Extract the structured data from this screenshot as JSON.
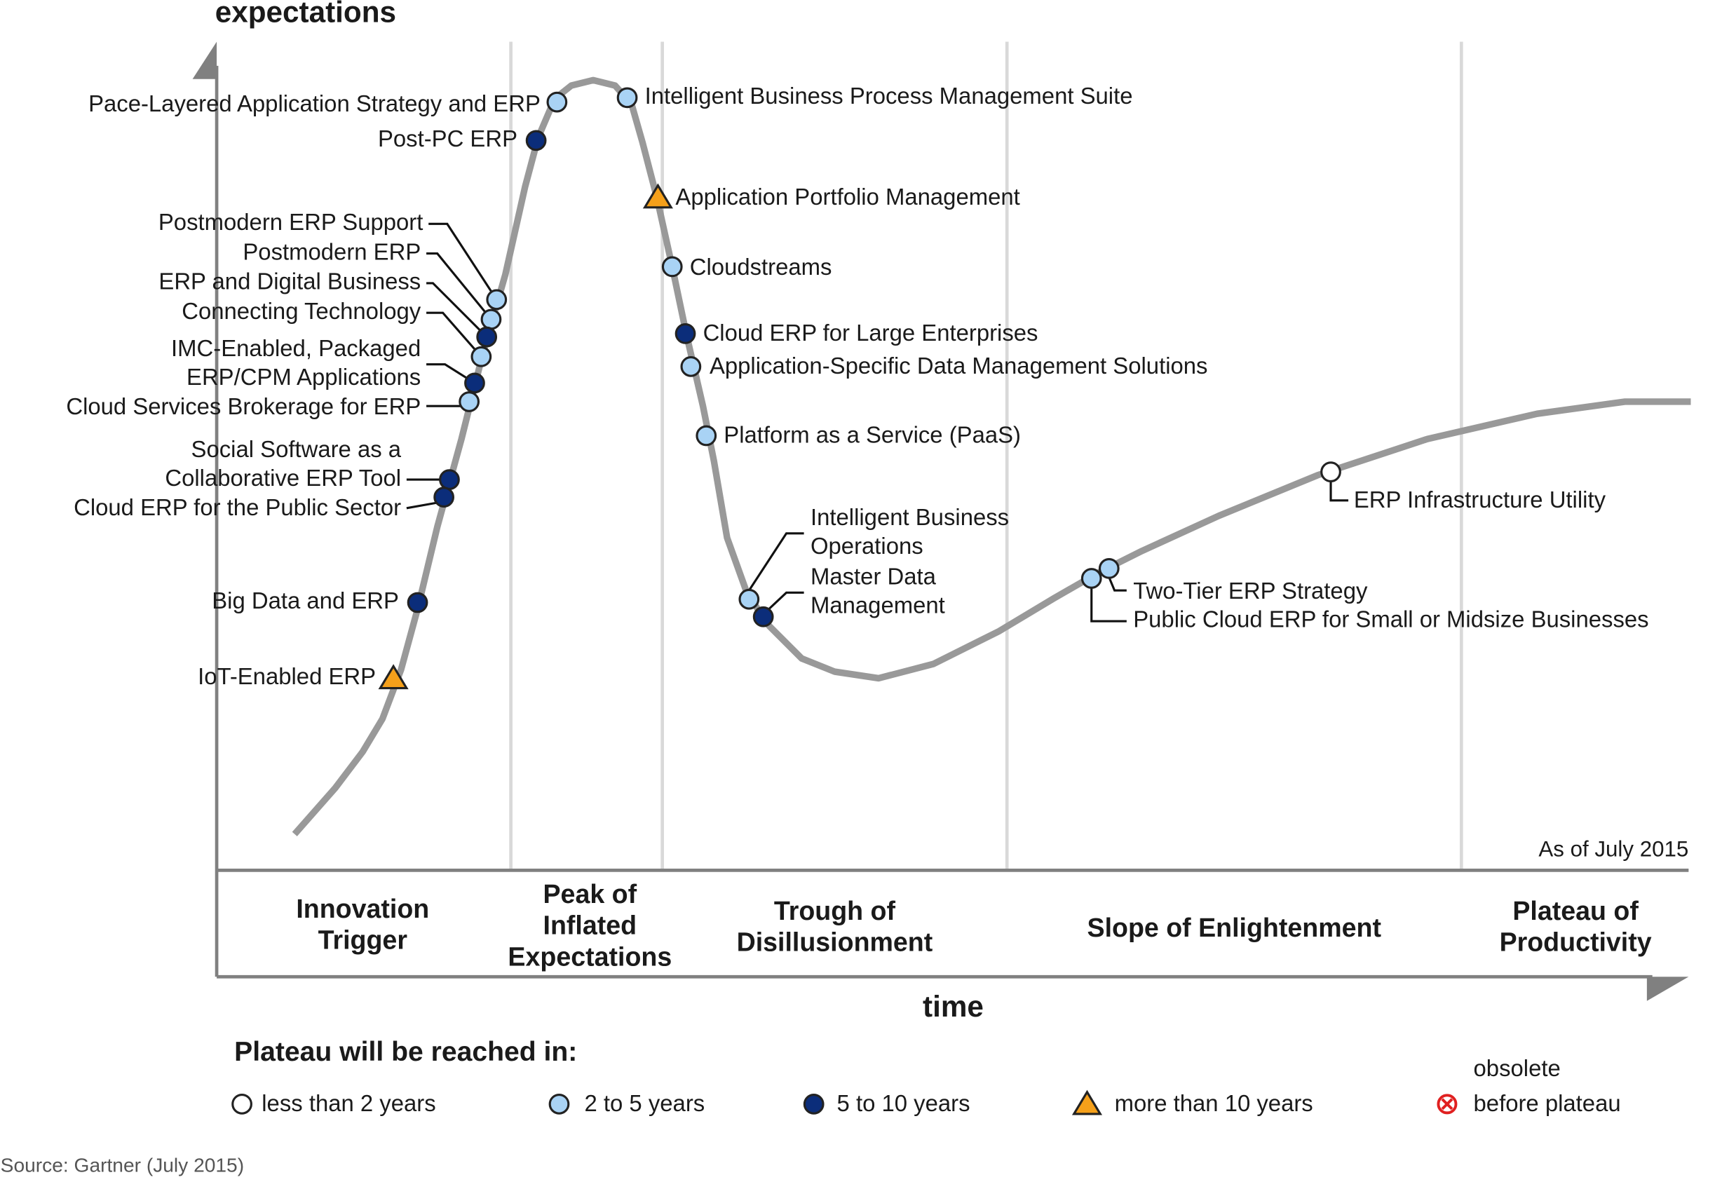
{
  "title": "expectations",
  "x_axis_label": "time",
  "note": "As of July 2015",
  "source": "Source: Gartner (July 2015)",
  "phases": [
    [
      "Innovation",
      "Trigger"
    ],
    [
      "Peak of",
      "Inflated",
      "Expectations"
    ],
    [
      "Trough of",
      "Disillusionment"
    ],
    [
      "Slope of Enlightenment"
    ],
    [
      "Plateau of",
      "Productivity"
    ]
  ],
  "legend": {
    "title": "Plateau will be reached in:",
    "items": [
      {
        "label": "less than 2 years"
      },
      {
        "label": "2 to 5 years"
      },
      {
        "label": "5 to 10 years"
      },
      {
        "label": "more than 10 years"
      },
      {
        "label": [
          "obsolete",
          "before plateau"
        ]
      }
    ]
  },
  "technologies": [
    {
      "label": "Pace-Layered Application Strategy and ERP",
      "plateau": "2 to 5 years"
    },
    {
      "label": "Intelligent Business Process Management Suite",
      "plateau": "2 to 5 years"
    },
    {
      "label": "Post-PC ERP",
      "plateau": "5 to 10 years"
    },
    {
      "label": "Application Portfolio Management",
      "plateau": "more than 10 years"
    },
    {
      "label": "Postmodern ERP Support",
      "plateau": "2 to 5 years"
    },
    {
      "label": "Postmodern ERP",
      "plateau": "2 to 5 years"
    },
    {
      "label": "ERP and Digital Business",
      "plateau": "5 to 10 years"
    },
    {
      "label": "Connecting Technology",
      "plateau": "2 to 5 years"
    },
    {
      "label": [
        "IMC-Enabled, Packaged",
        "ERP/CPM Applications"
      ],
      "plateau": "5 to 10 years"
    },
    {
      "label": "Cloud Services Brokerage for ERP",
      "plateau": "2 to 5 years"
    },
    {
      "label": "Cloudstreams",
      "plateau": "2 to 5 years"
    },
    {
      "label": "Cloud ERP for Large Enterprises",
      "plateau": "5 to 10 years"
    },
    {
      "label": "Application-Specific Data Management Solutions",
      "plateau": "2 to 5 years"
    },
    {
      "label": "Platform as a Service (PaaS)",
      "plateau": "2 to 5 years"
    },
    {
      "label": [
        "Social Software as a",
        "Collaborative ERP Tool"
      ],
      "plateau": "5 to 10 years"
    },
    {
      "label": "Cloud ERP for the Public Sector",
      "plateau": "5 to 10 years"
    },
    {
      "label": "Big Data and ERP",
      "plateau": "5 to 10 years"
    },
    {
      "label": "IoT-Enabled ERP",
      "plateau": "more than 10 years"
    },
    {
      "label": [
        "Intelligent Business",
        "Operations"
      ],
      "plateau": "2 to 5 years"
    },
    {
      "label": [
        "Master Data",
        "Management"
      ],
      "plateau": "5 to 10 years"
    },
    {
      "label": "Two-Tier ERP Strategy",
      "plateau": "2 to 5 years"
    },
    {
      "label": "Public Cloud ERP for Small or Midsize Businesses",
      "plateau": "2 to 5 years"
    },
    {
      "label": "ERP Infrastructure Utility",
      "plateau": "less than 2 years"
    }
  ]
}
